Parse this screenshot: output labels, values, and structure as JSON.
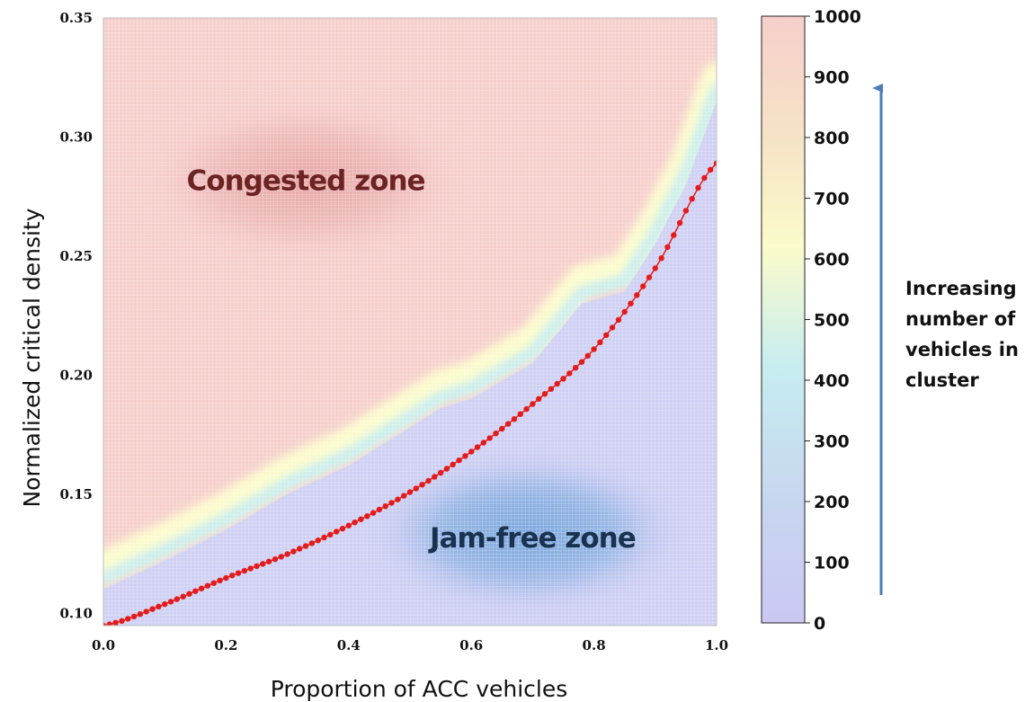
{
  "chart_data": {
    "type": "heatmap",
    "title": "",
    "xlabel": "Proportion of ACC vehicles",
    "ylabel": "Normalized critical density",
    "xlim": [
      0.0,
      1.0
    ],
    "ylim": [
      0.095,
      0.35
    ],
    "x_ticks": [
      "0.0",
      "0.2",
      "0.4",
      "0.6",
      "0.8",
      "1.0"
    ],
    "y_ticks": [
      "0.10",
      "0.15",
      "0.20",
      "0.25",
      "0.30",
      "0.35"
    ],
    "x_tick_values": [
      0.0,
      0.2,
      0.4,
      0.6,
      0.8,
      1.0
    ],
    "y_tick_values": [
      0.1,
      0.15,
      0.2,
      0.25,
      0.3,
      0.35
    ],
    "grid": true,
    "colorbar": {
      "min": 0,
      "max": 1000,
      "ticks": [
        "0",
        "100",
        "200",
        "300",
        "400",
        "500",
        "600",
        "700",
        "800",
        "900",
        "1000"
      ],
      "colors": [
        "#cbc8f4",
        "#c7d6ef",
        "#c6edf0",
        "#fbfbcb",
        "#f6e3c6",
        "#f6cfcb"
      ]
    },
    "annotations": {
      "congested": "Congested zone",
      "jam_free": "Jam-free zone",
      "arrow_text": [
        "Increasing",
        "number of",
        "vehicles in",
        "cluster"
      ]
    },
    "critical_curve": {
      "x": [
        0.0,
        0.1,
        0.2,
        0.3,
        0.4,
        0.5,
        0.6,
        0.7,
        0.8,
        0.9,
        1.0
      ],
      "y": [
        0.095,
        0.104,
        0.115,
        0.125,
        0.137,
        0.151,
        0.168,
        0.188,
        0.211,
        0.245,
        0.289
      ],
      "color": "#e41b1b"
    },
    "transition_band": {
      "x": [
        0.0,
        0.1,
        0.2,
        0.3,
        0.4,
        0.5,
        0.55,
        0.6,
        0.7,
        0.78,
        0.85,
        0.9,
        0.95,
        1.0
      ],
      "y": [
        0.12,
        0.132,
        0.145,
        0.16,
        0.172,
        0.188,
        0.196,
        0.2,
        0.215,
        0.24,
        0.245,
        0.265,
        0.29,
        0.325
      ]
    }
  }
}
